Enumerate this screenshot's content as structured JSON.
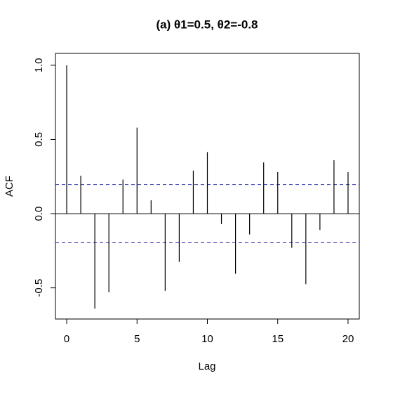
{
  "chart_data": {
    "type": "acf",
    "title": "(a)  θ1=0.5, θ2=-0.8",
    "x_label": "Lag",
    "y_label": "ACF",
    "x": [
      0,
      1,
      2,
      3,
      4,
      5,
      6,
      7,
      8,
      9,
      10,
      11,
      12,
      13,
      14,
      15,
      16,
      17,
      18,
      19,
      20
    ],
    "values": [
      1.0,
      0.255,
      -0.64,
      -0.53,
      0.23,
      0.58,
      0.09,
      -0.52,
      -0.325,
      0.29,
      0.415,
      -0.07,
      -0.405,
      -0.14,
      0.345,
      0.28,
      -0.23,
      -0.475,
      -0.11,
      0.36,
      0.28
    ],
    "color": "#000000",
    "conf_limits": [
      0.196,
      -0.196
    ],
    "conf_color": "#3333aa",
    "xlim": [
      -0.8,
      20.8
    ],
    "ylim": [
      -0.71,
      1.08
    ],
    "xticks": [
      0,
      5,
      10,
      15,
      20
    ],
    "yticks": [
      {
        "value": -0.5,
        "label": "-0.5"
      },
      {
        "value": 0,
        "label": "0.0"
      },
      {
        "value": 0.5,
        "label": "0.5"
      },
      {
        "value": 1,
        "label": "1.0"
      }
    ]
  }
}
